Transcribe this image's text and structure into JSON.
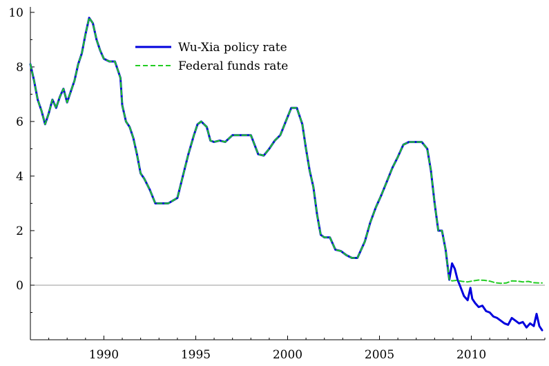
{
  "chart_data": {
    "type": "line",
    "title": "",
    "xlabel": "",
    "ylabel": "",
    "xlim": [
      1986,
      2014
    ],
    "ylim": [
      -2.0,
      10.2
    ],
    "x_ticks": [
      1990,
      1995,
      2000,
      2005,
      2010
    ],
    "y_ticks": [
      0,
      2,
      4,
      6,
      8,
      10
    ],
    "zero_line": true,
    "grid": false,
    "legend_position": "top-left",
    "series": [
      {
        "name": "Wu-Xia policy rate",
        "color": "#0000dd",
        "style": "solid",
        "x": [
          1986.0,
          1986.2,
          1986.4,
          1986.6,
          1986.8,
          1987.0,
          1987.2,
          1987.4,
          1987.6,
          1987.8,
          1988.0,
          1988.2,
          1988.4,
          1988.6,
          1988.8,
          1989.0,
          1989.2,
          1989.4,
          1989.6,
          1989.8,
          1990.0,
          1990.3,
          1990.6,
          1990.9,
          1991.0,
          1991.2,
          1991.4,
          1991.6,
          1991.8,
          1992.0,
          1992.2,
          1992.5,
          1992.8,
          1993.0,
          1993.5,
          1994.0,
          1994.3,
          1994.6,
          1994.9,
          1995.1,
          1995.3,
          1995.6,
          1995.8,
          1996.0,
          1996.3,
          1996.6,
          1997.0,
          1997.5,
          1998.0,
          1998.4,
          1998.7,
          1999.0,
          1999.3,
          1999.6,
          1999.9,
          2000.2,
          2000.5,
          2000.8,
          2001.0,
          2001.2,
          2001.4,
          2001.6,
          2001.8,
          2002.0,
          2002.3,
          2002.6,
          2002.9,
          2003.2,
          2003.5,
          2003.8,
          2004.2,
          2004.5,
          2004.8,
          2005.1,
          2005.4,
          2005.7,
          2006.0,
          2006.3,
          2006.6,
          2006.8,
          2007.0,
          2007.3,
          2007.6,
          2007.8,
          2008.0,
          2008.2,
          2008.4,
          2008.6,
          2008.8,
          2008.95,
          2009.1,
          2009.25,
          2009.4,
          2009.6,
          2009.8,
          2009.95,
          2010.05,
          2010.2,
          2010.4,
          2010.6,
          2010.8,
          2011.0,
          2011.2,
          2011.4,
          2011.6,
          2011.8,
          2012.0,
          2012.2,
          2012.4,
          2012.6,
          2012.8,
          2013.0,
          2013.2,
          2013.4,
          2013.55,
          2013.7,
          2013.85
        ],
        "values": [
          8.1,
          7.5,
          6.8,
          6.4,
          5.9,
          6.3,
          6.8,
          6.5,
          6.9,
          7.2,
          6.7,
          7.1,
          7.5,
          8.1,
          8.5,
          9.2,
          9.8,
          9.6,
          9.0,
          8.6,
          8.3,
          8.2,
          8.2,
          7.6,
          6.6,
          6.0,
          5.8,
          5.4,
          4.8,
          4.1,
          3.9,
          3.5,
          3.0,
          3.0,
          3.0,
          3.2,
          4.0,
          4.8,
          5.5,
          5.9,
          6.0,
          5.8,
          5.3,
          5.25,
          5.3,
          5.25,
          5.5,
          5.5,
          5.5,
          4.8,
          4.75,
          5.0,
          5.3,
          5.5,
          6.0,
          6.5,
          6.5,
          5.9,
          5.0,
          4.2,
          3.6,
          2.6,
          1.85,
          1.75,
          1.75,
          1.3,
          1.25,
          1.1,
          1.0,
          1.0,
          1.6,
          2.3,
          2.85,
          3.3,
          3.8,
          4.3,
          4.7,
          5.15,
          5.25,
          5.25,
          5.25,
          5.25,
          5.0,
          4.2,
          3.0,
          2.0,
          2.0,
          1.3,
          0.2,
          0.8,
          0.6,
          0.2,
          -0.05,
          -0.4,
          -0.55,
          -0.1,
          -0.5,
          -0.65,
          -0.8,
          -0.75,
          -0.95,
          -1.0,
          -1.15,
          -1.2,
          -1.3,
          -1.4,
          -1.45,
          -1.2,
          -1.3,
          -1.4,
          -1.35,
          -1.55,
          -1.4,
          -1.5,
          -1.05,
          -1.5,
          -1.65
        ]
      },
      {
        "name": "Federal funds rate",
        "color": "#22cc22",
        "style": "dashed",
        "x": [
          1986.0,
          1986.2,
          1986.4,
          1986.6,
          1986.8,
          1987.0,
          1987.2,
          1987.4,
          1987.6,
          1987.8,
          1988.0,
          1988.2,
          1988.4,
          1988.6,
          1988.8,
          1989.0,
          1989.2,
          1989.4,
          1989.6,
          1989.8,
          1990.0,
          1990.3,
          1990.6,
          1990.9,
          1991.0,
          1991.2,
          1991.4,
          1991.6,
          1991.8,
          1992.0,
          1992.2,
          1992.5,
          1992.8,
          1993.0,
          1993.5,
          1994.0,
          1994.3,
          1994.6,
          1994.9,
          1995.1,
          1995.3,
          1995.6,
          1995.8,
          1996.0,
          1996.3,
          1996.6,
          1997.0,
          1997.5,
          1998.0,
          1998.4,
          1998.7,
          1999.0,
          1999.3,
          1999.6,
          1999.9,
          2000.2,
          2000.5,
          2000.8,
          2001.0,
          2001.2,
          2001.4,
          2001.6,
          2001.8,
          2002.0,
          2002.3,
          2002.6,
          2002.9,
          2003.2,
          2003.5,
          2003.8,
          2004.2,
          2004.5,
          2004.8,
          2005.1,
          2005.4,
          2005.7,
          2006.0,
          2006.3,
          2006.6,
          2006.8,
          2007.0,
          2007.3,
          2007.6,
          2007.8,
          2008.0,
          2008.2,
          2008.4,
          2008.6,
          2008.8,
          2008.95,
          2009.2,
          2009.5,
          2009.8,
          2010.1,
          2010.4,
          2010.7,
          2011.0,
          2011.3,
          2011.6,
          2011.9,
          2012.2,
          2012.5,
          2012.8,
          2013.1,
          2013.4,
          2013.7,
          2013.85
        ],
        "values": [
          8.1,
          7.5,
          6.8,
          6.4,
          5.9,
          6.3,
          6.8,
          6.5,
          6.9,
          7.2,
          6.7,
          7.1,
          7.5,
          8.1,
          8.5,
          9.2,
          9.8,
          9.6,
          9.0,
          8.6,
          8.3,
          8.2,
          8.2,
          7.6,
          6.6,
          6.0,
          5.8,
          5.4,
          4.8,
          4.1,
          3.9,
          3.5,
          3.0,
          3.0,
          3.0,
          3.2,
          4.0,
          4.8,
          5.5,
          5.9,
          6.0,
          5.8,
          5.3,
          5.25,
          5.3,
          5.25,
          5.5,
          5.5,
          5.5,
          4.8,
          4.75,
          5.0,
          5.3,
          5.5,
          6.0,
          6.5,
          6.5,
          5.9,
          5.0,
          4.2,
          3.6,
          2.6,
          1.85,
          1.75,
          1.75,
          1.3,
          1.25,
          1.1,
          1.0,
          1.0,
          1.6,
          2.3,
          2.85,
          3.3,
          3.8,
          4.3,
          4.7,
          5.15,
          5.25,
          5.25,
          5.25,
          5.25,
          5.0,
          4.2,
          3.0,
          2.0,
          2.0,
          1.3,
          0.2,
          0.16,
          0.18,
          0.14,
          0.12,
          0.16,
          0.19,
          0.18,
          0.15,
          0.09,
          0.07,
          0.08,
          0.16,
          0.15,
          0.12,
          0.14,
          0.09,
          0.08,
          0.08
        ]
      }
    ]
  }
}
